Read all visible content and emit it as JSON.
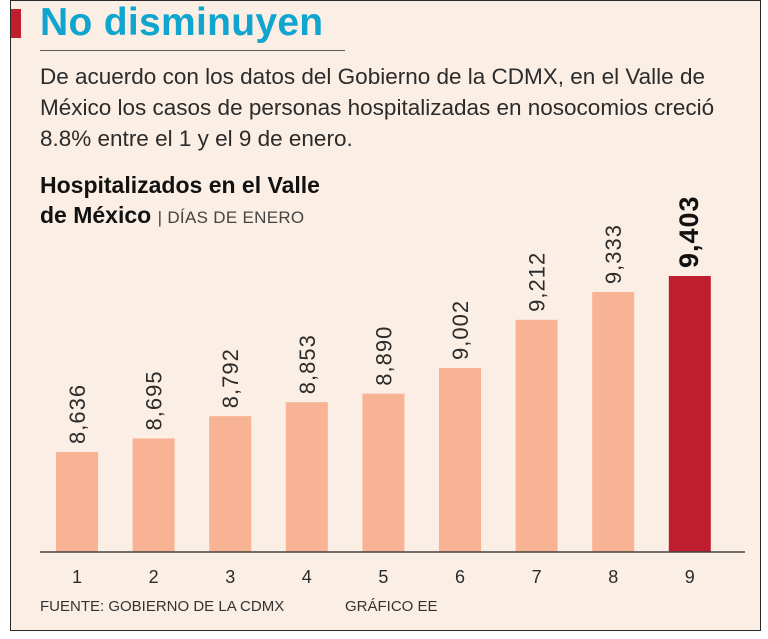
{
  "headline": "No disminuyen",
  "lede": "De acuerdo con los datos del Gobierno de la CDMX, en el Valle de México los casos de personas hospitalizadas en nosocomios creció 8.8% entre el 1 y el 9 de enero.",
  "chart_title_line1": "Hospitalizados en el Valle",
  "chart_title_line2": "de México",
  "chart_subtitle": "DÍAS DE ENERO",
  "source": "FUENTE: GOBIERNO DE LA CDMX",
  "credit": "GRÁFICO EE",
  "colors": {
    "bar": "#f8b294",
    "highlight_bar": "#be1e2d",
    "headline": "#0fa5cf",
    "accent": "#be1e2d",
    "background": "#fbeee4"
  },
  "chart_data": {
    "type": "bar",
    "title": "Hospitalizados en el Valle de México",
    "subtitle": "DÍAS DE ENERO",
    "categories": [
      "1",
      "2",
      "3",
      "4",
      "5",
      "6",
      "7",
      "8",
      "9"
    ],
    "values": [
      8636,
      8695,
      8792,
      8853,
      8890,
      9002,
      9212,
      9333,
      9403
    ],
    "value_labels": [
      "8,636",
      "8,695",
      "8,792",
      "8,853",
      "8,890",
      "9,002",
      "9,212",
      "9,333",
      "9,403"
    ],
    "highlight_index": 8,
    "xlabel": "",
    "ylabel": "",
    "ylim": [
      8200,
      9403
    ],
    "grid": false,
    "legend": "none"
  }
}
